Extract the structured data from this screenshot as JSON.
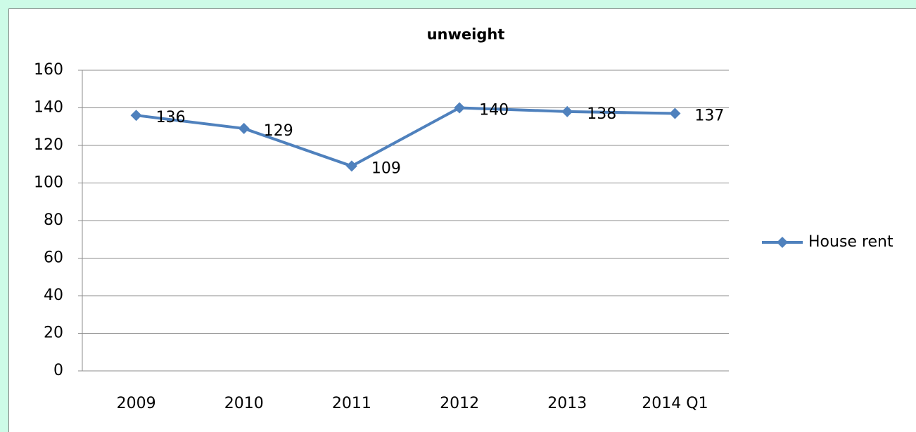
{
  "chart_data": {
    "type": "line",
    "title": "unweight",
    "categories": [
      "2009",
      "2010",
      "2011",
      "2012",
      "2013",
      "2014 Q1"
    ],
    "series": [
      {
        "name": "House rent",
        "color": "#4f81bd",
        "values": [
          136,
          129,
          109,
          140,
          138,
          137
        ]
      }
    ],
    "ylim": [
      0,
      160
    ],
    "yticks": [
      0,
      20,
      40,
      60,
      80,
      100,
      120,
      140,
      160
    ],
    "grid": true,
    "legend": "right"
  }
}
